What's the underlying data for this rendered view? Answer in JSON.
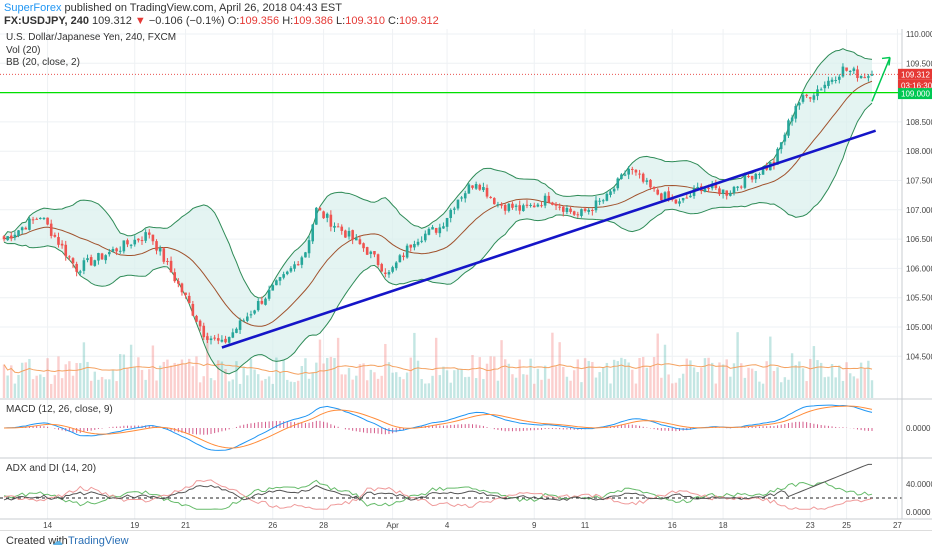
{
  "header": {
    "publisher": "SuperForex",
    "published_text": "published on TradingView.com, April 26, 2018 04:43 EST",
    "symbol": "FX:USDJPY, 240",
    "last": "109.312",
    "change": "−0.106 (−0.1%)",
    "open_label": "O:",
    "open": "109.356",
    "high_label": "H:",
    "high": "109.386",
    "low_label": "L:",
    "low": "109.310",
    "close_label": "C:",
    "close": "109.312"
  },
  "legend": {
    "title": "U.S. Dollar/Japanese Yen, 240, FXCM",
    "vol": "Vol (20)",
    "bb": "BB (20, close, 2)"
  },
  "indicators": {
    "macd": "MACD (12, 26, close, 9)",
    "adx": "ADX and DI (14, 20)"
  },
  "footer": {
    "created_with": "Created with",
    "brand": "TradingView"
  },
  "colors": {
    "up": "#26a69a",
    "down": "#ef5350",
    "trendline": "#1515c8",
    "level": "#00e000",
    "arrow": "#00c853",
    "bb": "#2e8b57",
    "bbFill": "#d8f0ec",
    "basis": "#a0522d",
    "price_tag": "#e53935",
    "level_tag": "#00c853",
    "macd": "#2196f3",
    "signal": "#ff8c3a",
    "hist": "#c2185b",
    "adx": "#555555",
    "di_plus": "#66bb6a",
    "di_minus": "#ef9a9a"
  },
  "chart_data": {
    "type": "candlestick",
    "symbol": "USDJPY",
    "timeframe": "240",
    "y_ticks": [
      "110.000",
      "109.500",
      "109.000",
      "108.500",
      "108.000",
      "107.500",
      "107.000",
      "106.500",
      "106.000",
      "105.500",
      "105.000",
      "104.500"
    ],
    "x_ticks": [
      "14",
      "19",
      "21",
      "26",
      "28",
      "Apr",
      "4",
      "9",
      "11",
      "16",
      "18",
      "23",
      "25",
      "27"
    ],
    "price_tags": [
      "109.312",
      "03:16:30",
      "109.000"
    ],
    "macd_ticks": [
      "0.0000"
    ],
    "adx_ticks": [
      "40.0000",
      "0.0000"
    ],
    "close_anchors": [
      [
        0,
        106.5
      ],
      [
        10,
        106.9
      ],
      [
        20,
        106.0
      ],
      [
        30,
        106.3
      ],
      [
        40,
        106.6
      ],
      [
        50,
        105.5
      ],
      [
        55,
        104.9
      ],
      [
        60,
        104.7
      ],
      [
        70,
        105.4
      ],
      [
        78,
        105.9
      ],
      [
        83,
        106.3
      ],
      [
        86,
        107.0
      ],
      [
        92,
        106.7
      ],
      [
        100,
        106.3
      ],
      [
        106,
        105.9
      ],
      [
        113,
        106.5
      ],
      [
        120,
        106.7
      ],
      [
        125,
        107.2
      ],
      [
        130,
        107.5
      ],
      [
        136,
        107.1
      ],
      [
        143,
        107.0
      ],
      [
        150,
        107.2
      ],
      [
        158,
        106.9
      ],
      [
        166,
        107.2
      ],
      [
        172,
        107.7
      ],
      [
        179,
        107.3
      ],
      [
        186,
        107.1
      ],
      [
        192,
        107.4
      ],
      [
        199,
        107.3
      ],
      [
        206,
        107.6
      ],
      [
        212,
        107.8
      ],
      [
        218,
        108.8
      ],
      [
        225,
        109.1
      ],
      [
        231,
        109.4
      ],
      [
        236,
        109.3
      ]
    ],
    "trendline": [
      [
        60,
        104.65
      ],
      [
        240,
        108.35
      ]
    ],
    "horizontal_level": 109.0,
    "last_price": 109.312,
    "bollinger": {
      "period": 20,
      "stddev": 2
    }
  }
}
